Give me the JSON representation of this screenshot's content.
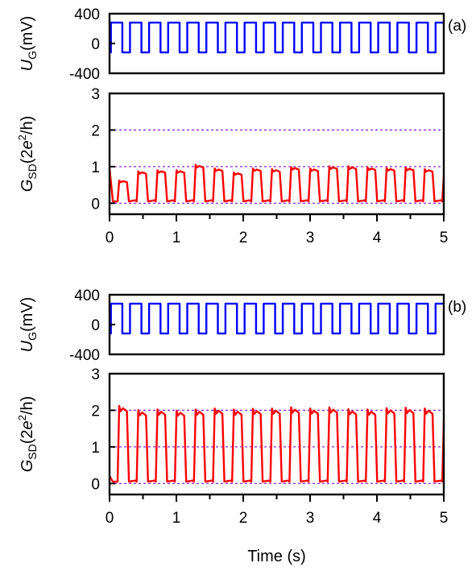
{
  "colors": {
    "gate_voltage": "#0000ff",
    "conductance": "#ff0000",
    "reference_lines": "#8a2be2",
    "frame": "#000000"
  },
  "chart_data": [
    {
      "id": "a_top",
      "type": "line",
      "panel_tag": "(a)",
      "ylabel": {
        "main": "U",
        "sub": "G",
        "unit": "(mV)"
      },
      "ylim": [
        -400,
        400
      ],
      "yticks": [
        400,
        0,
        -400
      ],
      "xlim": [
        0,
        5
      ],
      "series": [
        {
          "kind": "square",
          "color_key": "gate_voltage",
          "high": 280,
          "low": -120,
          "period": 0.2857,
          "start": 0.02,
          "duty": 0.6
        }
      ]
    },
    {
      "id": "a_bottom",
      "type": "line",
      "ylabel": {
        "main": "G",
        "sub": "SD",
        "unit_pre": "(2e",
        "sup": "2",
        "unit_post": "/h)"
      },
      "ylim": [
        -0.3,
        3
      ],
      "yticks": [
        3,
        2,
        1,
        0
      ],
      "reference_lines": [
        0,
        1,
        2
      ],
      "xlim": [
        0,
        5
      ],
      "xticks": [
        0,
        1,
        2,
        3,
        4,
        5
      ],
      "minor_xticks": [
        0.5,
        1.5,
        2.5,
        3.5,
        4.5
      ],
      "series": [
        {
          "kind": "pulse",
          "color_key": "conductance",
          "period": 0.2857,
          "start": 0.12,
          "width": 0.15,
          "low": 0.05,
          "peaks": [
            0.62,
            0.87,
            0.9,
            0.9,
            1.05,
            0.95,
            0.84,
            0.95,
            0.93,
            0.99,
            0.95,
            1.01,
            1.01,
            0.98,
            0.96,
            0.97,
            0.93,
            0.89
          ]
        }
      ]
    },
    {
      "id": "b_top",
      "type": "line",
      "panel_tag": "(b)",
      "ylabel": {
        "main": "U",
        "sub": "G",
        "unit": "(mV)"
      },
      "ylim": [
        -400,
        400
      ],
      "yticks": [
        400,
        0,
        -400
      ],
      "xlim": [
        0,
        5
      ],
      "series": [
        {
          "kind": "square",
          "color_key": "gate_voltage",
          "high": 280,
          "low": -120,
          "period": 0.2857,
          "start": 0.02,
          "duty": 0.6
        }
      ]
    },
    {
      "id": "b_bottom",
      "type": "line",
      "ylabel": {
        "main": "G",
        "sub": "SD",
        "unit_pre": "(2e",
        "sup": "2",
        "unit_post": "/h)"
      },
      "ylim": [
        -0.3,
        3
      ],
      "yticks": [
        3,
        2,
        1,
        0
      ],
      "reference_lines": [
        0,
        1,
        2
      ],
      "xlim": [
        0,
        5
      ],
      "xticks": [
        0,
        1,
        2,
        3,
        4,
        5
      ],
      "minor_xticks": [
        0.5,
        1.5,
        2.5,
        3.5,
        4.5
      ],
      "xlabel": "Time (s)",
      "series": [
        {
          "kind": "pulse",
          "color_key": "conductance",
          "period": 0.2857,
          "start": 0.12,
          "width": 0.15,
          "low": 0.05,
          "peaks": [
            2.12,
            2.0,
            2.02,
            1.99,
            2.02,
            2.05,
            2.02,
            2.04,
            2.05,
            2.08,
            2.05,
            2.08,
            2.03,
            2.02,
            2.06,
            2.07,
            2.05,
            2.0
          ]
        }
      ]
    }
  ]
}
